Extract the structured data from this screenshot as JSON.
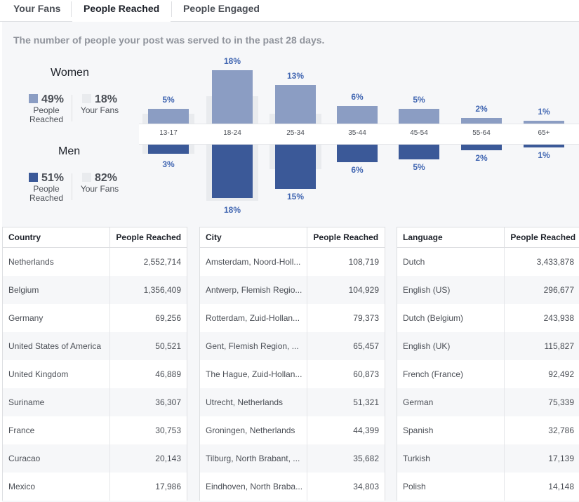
{
  "tabs": [
    {
      "label": "Your Fans",
      "active": false
    },
    {
      "label": "People Reached",
      "active": true
    },
    {
      "label": "People Engaged",
      "active": false
    }
  ],
  "subtitle": "The number of people your post was served to in the past 28 days.",
  "legend": {
    "women": {
      "title": "Women",
      "reached_pct": "49%",
      "reached_label_1": "People",
      "reached_label_2": "Reached",
      "fans_pct": "18%",
      "fans_label": "Your Fans"
    },
    "men": {
      "title": "Men",
      "reached_pct": "51%",
      "reached_label_1": "People",
      "reached_label_2": "Reached",
      "fans_pct": "82%",
      "fans_label": "Your Fans"
    }
  },
  "colors": {
    "women": "#8b9dc3",
    "men": "#3b5998",
    "label": "#4267b2"
  },
  "chart_data": {
    "type": "bar",
    "categories": [
      "13-17",
      "18-24",
      "25-34",
      "35-44",
      "45-54",
      "55-64",
      "65+"
    ],
    "series": [
      {
        "name": "Women",
        "values": [
          5,
          18,
          13,
          6,
          5,
          2,
          1
        ],
        "labels": [
          "5%",
          "18%",
          "13%",
          "6%",
          "5%",
          "2%",
          "1%"
        ]
      },
      {
        "name": "Men",
        "values": [
          3,
          18,
          15,
          6,
          5,
          2,
          1
        ],
        "labels": [
          "3%",
          "18%",
          "15%",
          "6%",
          "5%",
          "2%",
          "1%"
        ]
      }
    ],
    "highlighted": [
      "13-17",
      "18-24",
      "25-34"
    ]
  },
  "tables": {
    "country": {
      "col1": "Country",
      "col2": "People Reached",
      "rows": [
        {
          "name": "Netherlands",
          "value": "2,552,714"
        },
        {
          "name": "Belgium",
          "value": "1,356,409"
        },
        {
          "name": "Germany",
          "value": "69,256"
        },
        {
          "name": "United States of America",
          "value": "50,521"
        },
        {
          "name": "United Kingdom",
          "value": "46,889"
        },
        {
          "name": "Suriname",
          "value": "36,307"
        },
        {
          "name": "France",
          "value": "30,753"
        },
        {
          "name": "Curacao",
          "value": "20,143"
        },
        {
          "name": "Mexico",
          "value": "17,986"
        }
      ]
    },
    "city": {
      "col1": "City",
      "col2": "People Reached",
      "rows": [
        {
          "name": "Amsterdam, Noord-Holl...",
          "value": "108,719"
        },
        {
          "name": "Antwerp, Flemish Regio...",
          "value": "104,929"
        },
        {
          "name": "Rotterdam, Zuid-Hollan...",
          "value": "79,373"
        },
        {
          "name": "Gent, Flemish Region, ...",
          "value": "65,457"
        },
        {
          "name": "The Hague, Zuid-Hollan...",
          "value": "60,873"
        },
        {
          "name": "Utrecht, Netherlands",
          "value": "51,321"
        },
        {
          "name": "Groningen, Netherlands",
          "value": "44,399"
        },
        {
          "name": "Tilburg, North Brabant, ...",
          "value": "35,682"
        },
        {
          "name": "Eindhoven, North Braba...",
          "value": "34,803"
        }
      ]
    },
    "language": {
      "col1": "Language",
      "col2": "People Reached",
      "rows": [
        {
          "name": "Dutch",
          "value": "3,433,878"
        },
        {
          "name": "English (US)",
          "value": "296,677"
        },
        {
          "name": "Dutch (Belgium)",
          "value": "243,938"
        },
        {
          "name": "English (UK)",
          "value": "115,827"
        },
        {
          "name": "French (France)",
          "value": "92,492"
        },
        {
          "name": "German",
          "value": "75,339"
        },
        {
          "name": "Spanish",
          "value": "32,786"
        },
        {
          "name": "Turkish",
          "value": "17,139"
        },
        {
          "name": "Polish",
          "value": "14,148"
        }
      ]
    }
  }
}
